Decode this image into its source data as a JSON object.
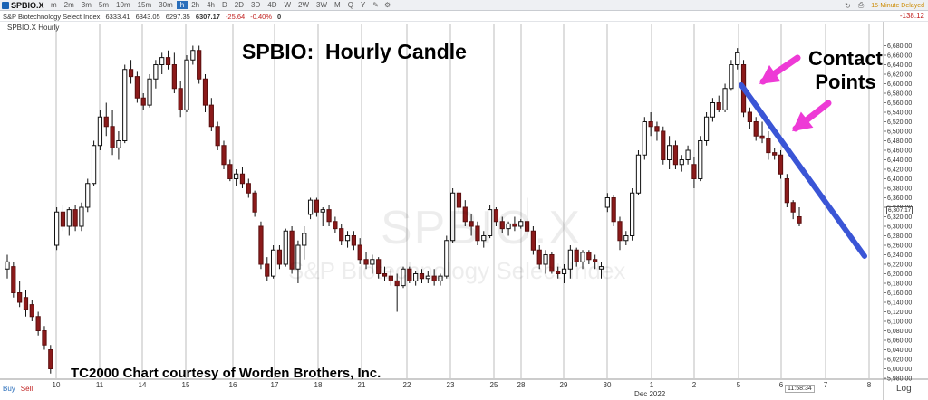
{
  "toolbar": {
    "symbol": "SPBIO.X",
    "timeframes": [
      "m",
      "2m",
      "3m",
      "5m",
      "10m",
      "15m",
      "30m",
      "h",
      "2h",
      "4h",
      "D",
      "2D",
      "3D",
      "4D",
      "W",
      "2W",
      "3W",
      "M",
      "Q",
      "Y"
    ],
    "active_timeframe": "h",
    "delay_label": "15-Minute Delayed"
  },
  "quote": {
    "name": "S&P Biotechnology Select Index",
    "open": "6333.41",
    "high": "6343.05",
    "low": "6297.35",
    "last": "6307.17",
    "change": "-25.64",
    "change_pct": "-0.40%",
    "volume": "0",
    "change_right": "-138.12"
  },
  "plot_label": "SPBIO.X Hourly",
  "title": "SPBIO:  Hourly Candle",
  "annotation": {
    "line1": "Contact",
    "line2": "Points"
  },
  "credit": "TC2000 Chart courtesy of Worden Brothers, Inc.",
  "watermark": {
    "symbol": "SPBIO.X",
    "name": "S&P Biotechnology Select Index"
  },
  "footer": {
    "buy": "Buy",
    "sell": "Sell",
    "clock": "11:58:34",
    "month_label": "Dec 2022",
    "log_label": "Log",
    "price_flag": "6,307.17"
  },
  "colors": {
    "up_candle": "#ffffff",
    "down_candle": "#8b1a1a",
    "trendline": "#3a55d6",
    "arrow": "#ee3ad6",
    "grid": "#bdbdbd"
  },
  "chart_data": {
    "type": "candlestick",
    "title": "SPBIO:  Hourly Candle",
    "ylim": [
      5980,
      6700
    ],
    "y_ticks": [
      5980,
      6000,
      6020,
      6040,
      6060,
      6080,
      6100,
      6120,
      6140,
      6160,
      6180,
      6200,
      6220,
      6240,
      6260,
      6280,
      6300,
      6320,
      6340,
      6360,
      6380,
      6400,
      6420,
      6440,
      6460,
      6480,
      6500,
      6520,
      6540,
      6560,
      6580,
      6600,
      6620,
      6640,
      6660,
      6680
    ],
    "y_tick_labels": [
      "5,980.00",
      "6,000.00",
      "6,020.00",
      "6,040.00",
      "6,060.00",
      "6,080.00",
      "6,100.00",
      "6,120.00",
      "6,140.00",
      "6,160.00",
      "6,180.00",
      "6,200.00",
      "6,220.00",
      "6,240.00",
      "6,260.00",
      "6,280.00",
      "6,300.00",
      "6,320.00",
      "6,340.00",
      "6,360.00",
      "6,380.00",
      "6,400.00",
      "6,420.00",
      "6,440.00",
      "6,460.00",
      "6,480.00",
      "6,500.00",
      "6,520.00",
      "6,540.00",
      "6,560.00",
      "6,580.00",
      "6,600.00",
      "6,620.00",
      "6,640.00",
      "6,660.00",
      "6,680.00"
    ],
    "x_ticks": [
      "10",
      "11",
      "14",
      "15",
      "16",
      "17",
      "18",
      "21",
      "22",
      "23",
      "25",
      "28",
      "29",
      "30",
      "1",
      "2",
      "5",
      "6",
      "7",
      "8"
    ],
    "candles": [
      {
        "o": 6210,
        "h": 6240,
        "l": 6190,
        "c": 6225
      },
      {
        "o": 6215,
        "h": 6225,
        "l": 6150,
        "c": 6160
      },
      {
        "o": 6160,
        "h": 6185,
        "l": 6130,
        "c": 6140
      },
      {
        "o": 6150,
        "h": 6165,
        "l": 6110,
        "c": 6125
      },
      {
        "o": 6135,
        "h": 6145,
        "l": 6100,
        "c": 6110
      },
      {
        "o": 6110,
        "h": 6120,
        "l": 6070,
        "c": 6080
      },
      {
        "o": 6080,
        "h": 6090,
        "l": 6040,
        "c": 6050
      },
      {
        "o": 6040,
        "h": 6050,
        "l": 5990,
        "c": 6000
      },
      {
        "o": 6260,
        "h": 6340,
        "l": 6250,
        "c": 6330
      },
      {
        "o": 6330,
        "h": 6345,
        "l": 6290,
        "c": 6300
      },
      {
        "o": 6300,
        "h": 6340,
        "l": 6280,
        "c": 6335
      },
      {
        "o": 6335,
        "h": 6345,
        "l": 6290,
        "c": 6300
      },
      {
        "o": 6300,
        "h": 6350,
        "l": 6290,
        "c": 6340
      },
      {
        "o": 6340,
        "h": 6400,
        "l": 6330,
        "c": 6390
      },
      {
        "o": 6390,
        "h": 6480,
        "l": 6385,
        "c": 6470
      },
      {
        "o": 6470,
        "h": 6545,
        "l": 6460,
        "c": 6530
      },
      {
        "o": 6530,
        "h": 6560,
        "l": 6490,
        "c": 6510
      },
      {
        "o": 6510,
        "h": 6545,
        "l": 6450,
        "c": 6465
      },
      {
        "o": 6465,
        "h": 6500,
        "l": 6440,
        "c": 6480
      },
      {
        "o": 6480,
        "h": 6640,
        "l": 6475,
        "c": 6630
      },
      {
        "o": 6630,
        "h": 6650,
        "l": 6600,
        "c": 6615
      },
      {
        "o": 6615,
        "h": 6625,
        "l": 6560,
        "c": 6570
      },
      {
        "o": 6570,
        "h": 6580,
        "l": 6545,
        "c": 6555
      },
      {
        "o": 6555,
        "h": 6620,
        "l": 6550,
        "c": 6610
      },
      {
        "o": 6610,
        "h": 6650,
        "l": 6590,
        "c": 6640
      },
      {
        "o": 6640,
        "h": 6665,
        "l": 6620,
        "c": 6655
      },
      {
        "o": 6655,
        "h": 6670,
        "l": 6630,
        "c": 6640
      },
      {
        "o": 6640,
        "h": 6665,
        "l": 6580,
        "c": 6590
      },
      {
        "o": 6590,
        "h": 6605,
        "l": 6530,
        "c": 6545
      },
      {
        "o": 6545,
        "h": 6660,
        "l": 6540,
        "c": 6650
      },
      {
        "o": 6650,
        "h": 6680,
        "l": 6640,
        "c": 6670
      },
      {
        "o": 6670,
        "h": 6680,
        "l": 6600,
        "c": 6610
      },
      {
        "o": 6610,
        "h": 6620,
        "l": 6540,
        "c": 6555
      },
      {
        "o": 6555,
        "h": 6570,
        "l": 6500,
        "c": 6510
      },
      {
        "o": 6510,
        "h": 6520,
        "l": 6460,
        "c": 6470
      },
      {
        "o": 6470,
        "h": 6480,
        "l": 6420,
        "c": 6430
      },
      {
        "o": 6430,
        "h": 6440,
        "l": 6395,
        "c": 6400
      },
      {
        "o": 6400,
        "h": 6420,
        "l": 6385,
        "c": 6410
      },
      {
        "o": 6410,
        "h": 6425,
        "l": 6380,
        "c": 6390
      },
      {
        "o": 6390,
        "h": 6400,
        "l": 6360,
        "c": 6370
      },
      {
        "o": 6370,
        "h": 6375,
        "l": 6320,
        "c": 6330
      },
      {
        "o": 6300,
        "h": 6310,
        "l": 6210,
        "c": 6220
      },
      {
        "o": 6220,
        "h": 6235,
        "l": 6185,
        "c": 6195
      },
      {
        "o": 6195,
        "h": 6260,
        "l": 6190,
        "c": 6250
      },
      {
        "o": 6250,
        "h": 6260,
        "l": 6210,
        "c": 6220
      },
      {
        "o": 6220,
        "h": 6295,
        "l": 6215,
        "c": 6290
      },
      {
        "o": 6290,
        "h": 6300,
        "l": 6200,
        "c": 6210
      },
      {
        "o": 6210,
        "h": 6270,
        "l": 6180,
        "c": 6260
      },
      {
        "o": 6260,
        "h": 6300,
        "l": 6230,
        "c": 6285
      },
      {
        "o": 6325,
        "h": 6360,
        "l": 6315,
        "c": 6355
      },
      {
        "o": 6355,
        "h": 6360,
        "l": 6320,
        "c": 6330
      },
      {
        "o": 6330,
        "h": 6340,
        "l": 6300,
        "c": 6335
      },
      {
        "o": 6335,
        "h": 6345,
        "l": 6300,
        "c": 6310
      },
      {
        "o": 6310,
        "h": 6320,
        "l": 6285,
        "c": 6295
      },
      {
        "o": 6295,
        "h": 6305,
        "l": 6260,
        "c": 6270
      },
      {
        "o": 6270,
        "h": 6290,
        "l": 6255,
        "c": 6280
      },
      {
        "o": 6280,
        "h": 6290,
        "l": 6250,
        "c": 6260
      },
      {
        "o": 6260,
        "h": 6275,
        "l": 6220,
        "c": 6230
      },
      {
        "o": 6230,
        "h": 6245,
        "l": 6210,
        "c": 6220
      },
      {
        "o": 6220,
        "h": 6240,
        "l": 6200,
        "c": 6230
      },
      {
        "o": 6230,
        "h": 6235,
        "l": 6190,
        "c": 6200
      },
      {
        "o": 6200,
        "h": 6215,
        "l": 6185,
        "c": 6195
      },
      {
        "o": 6195,
        "h": 6210,
        "l": 6175,
        "c": 6185
      },
      {
        "o": 6185,
        "h": 6200,
        "l": 6120,
        "c": 6175
      },
      {
        "o": 6175,
        "h": 6215,
        "l": 6170,
        "c": 6210
      },
      {
        "o": 6210,
        "h": 6215,
        "l": 6180,
        "c": 6185
      },
      {
        "o": 6185,
        "h": 6205,
        "l": 6175,
        "c": 6200
      },
      {
        "o": 6200,
        "h": 6210,
        "l": 6180,
        "c": 6190
      },
      {
        "o": 6190,
        "h": 6205,
        "l": 6180,
        "c": 6195
      },
      {
        "o": 6195,
        "h": 6210,
        "l": 6175,
        "c": 6185
      },
      {
        "o": 6185,
        "h": 6200,
        "l": 6175,
        "c": 6195
      },
      {
        "o": 6195,
        "h": 6280,
        "l": 6190,
        "c": 6270
      },
      {
        "o": 6270,
        "h": 6380,
        "l": 6265,
        "c": 6370
      },
      {
        "o": 6370,
        "h": 6375,
        "l": 6330,
        "c": 6340
      },
      {
        "o": 6340,
        "h": 6355,
        "l": 6300,
        "c": 6310
      },
      {
        "o": 6310,
        "h": 6325,
        "l": 6280,
        "c": 6300
      },
      {
        "o": 6300,
        "h": 6310,
        "l": 6260,
        "c": 6270
      },
      {
        "o": 6270,
        "h": 6290,
        "l": 6255,
        "c": 6280
      },
      {
        "o": 6280,
        "h": 6345,
        "l": 6275,
        "c": 6335
      },
      {
        "o": 6335,
        "h": 6340,
        "l": 6300,
        "c": 6310
      },
      {
        "o": 6310,
        "h": 6320,
        "l": 6285,
        "c": 6295
      },
      {
        "o": 6295,
        "h": 6310,
        "l": 6280,
        "c": 6305
      },
      {
        "o": 6305,
        "h": 6320,
        "l": 6290,
        "c": 6300
      },
      {
        "o": 6300,
        "h": 6315,
        "l": 6295,
        "c": 6310
      },
      {
        "o": 6310,
        "h": 6360,
        "l": 6275,
        "c": 6290
      },
      {
        "o": 6290,
        "h": 6300,
        "l": 6240,
        "c": 6250
      },
      {
        "o": 6250,
        "h": 6260,
        "l": 6210,
        "c": 6220
      },
      {
        "o": 6220,
        "h": 6250,
        "l": 6200,
        "c": 6240
      },
      {
        "o": 6240,
        "h": 6245,
        "l": 6200,
        "c": 6205
      },
      {
        "o": 6205,
        "h": 6215,
        "l": 6190,
        "c": 6200
      },
      {
        "o": 6200,
        "h": 6220,
        "l": 6180,
        "c": 6210
      },
      {
        "o": 6210,
        "h": 6260,
        "l": 6190,
        "c": 6250
      },
      {
        "o": 6250,
        "h": 6255,
        "l": 6215,
        "c": 6225
      },
      {
        "o": 6225,
        "h": 6250,
        "l": 6210,
        "c": 6245
      },
      {
        "o": 6245,
        "h": 6250,
        "l": 6220,
        "c": 6230
      },
      {
        "o": 6230,
        "h": 6240,
        "l": 6210,
        "c": 6225
      },
      {
        "o": 6210,
        "h": 6225,
        "l": 6190,
        "c": 6215
      },
      {
        "o": 6340,
        "h": 6370,
        "l": 6330,
        "c": 6360
      },
      {
        "o": 6360,
        "h": 6365,
        "l": 6300,
        "c": 6310
      },
      {
        "o": 6310,
        "h": 6320,
        "l": 6250,
        "c": 6270
      },
      {
        "o": 6270,
        "h": 6290,
        "l": 6260,
        "c": 6280
      },
      {
        "o": 6280,
        "h": 6380,
        "l": 6270,
        "c": 6370
      },
      {
        "o": 6370,
        "h": 6460,
        "l": 6365,
        "c": 6450
      },
      {
        "o": 6450,
        "h": 6530,
        "l": 6440,
        "c": 6520
      },
      {
        "o": 6520,
        "h": 6540,
        "l": 6490,
        "c": 6510
      },
      {
        "o": 6510,
        "h": 6520,
        "l": 6480,
        "c": 6500
      },
      {
        "o": 6500,
        "h": 6510,
        "l": 6430,
        "c": 6440
      },
      {
        "o": 6440,
        "h": 6490,
        "l": 6420,
        "c": 6470
      },
      {
        "o": 6470,
        "h": 6480,
        "l": 6420,
        "c": 6430
      },
      {
        "o": 6430,
        "h": 6450,
        "l": 6415,
        "c": 6440
      },
      {
        "o": 6440,
        "h": 6470,
        "l": 6430,
        "c": 6460
      },
      {
        "o": 6430,
        "h": 6445,
        "l": 6380,
        "c": 6400
      },
      {
        "o": 6400,
        "h": 6490,
        "l": 6395,
        "c": 6480
      },
      {
        "o": 6480,
        "h": 6540,
        "l": 6470,
        "c": 6530
      },
      {
        "o": 6530,
        "h": 6570,
        "l": 6520,
        "c": 6560
      },
      {
        "o": 6560,
        "h": 6575,
        "l": 6540,
        "c": 6545
      },
      {
        "o": 6545,
        "h": 6600,
        "l": 6540,
        "c": 6590
      },
      {
        "o": 6590,
        "h": 6650,
        "l": 6585,
        "c": 6640
      },
      {
        "o": 6640,
        "h": 6675,
        "l": 6630,
        "c": 6665
      },
      {
        "o": 6640,
        "h": 6650,
        "l": 6530,
        "c": 6540
      },
      {
        "o": 6540,
        "h": 6550,
        "l": 6505,
        "c": 6520
      },
      {
        "o": 6520,
        "h": 6530,
        "l": 6480,
        "c": 6490
      },
      {
        "o": 6490,
        "h": 6520,
        "l": 6475,
        "c": 6485
      },
      {
        "o": 6485,
        "h": 6500,
        "l": 6440,
        "c": 6455
      },
      {
        "o": 6455,
        "h": 6465,
        "l": 6440,
        "c": 6450
      },
      {
        "o": 6450,
        "h": 6460,
        "l": 6400,
        "c": 6410
      },
      {
        "o": 6400,
        "h": 6410,
        "l": 6340,
        "c": 6350
      },
      {
        "o": 6350,
        "h": 6355,
        "l": 6315,
        "c": 6330
      },
      {
        "o": 6320,
        "h": 6340,
        "l": 6300,
        "c": 6307
      }
    ]
  }
}
